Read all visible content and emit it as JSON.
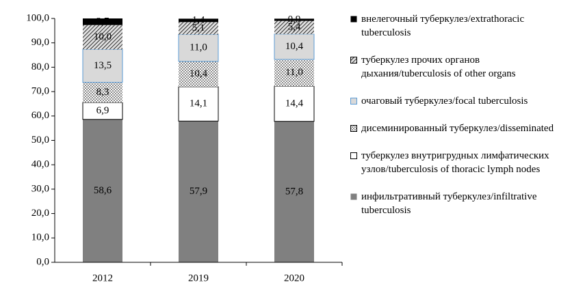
{
  "chart_data": {
    "type": "stacked_bar",
    "categories": [
      "2012",
      "2019",
      "2020"
    ],
    "ylim": [
      0,
      100
    ],
    "yticks": [
      {
        "value": 0,
        "label": "0,0"
      },
      {
        "value": 10,
        "label": "10,0"
      },
      {
        "value": 20,
        "label": "20,0"
      },
      {
        "value": 30,
        "label": "30,0"
      },
      {
        "value": 40,
        "label": "40,0"
      },
      {
        "value": 50,
        "label": "50,0"
      },
      {
        "value": 60,
        "label": "60,0"
      },
      {
        "value": 70,
        "label": "70,0"
      },
      {
        "value": 80,
        "label": "80,0"
      },
      {
        "value": 90,
        "label": "90,0"
      },
      {
        "value": 100,
        "label": "100,0"
      }
    ],
    "series": [
      {
        "name": "инфильтративный туберкулез/infiltrative tuberculosis",
        "color": "#808080",
        "values": [
          58.6,
          57.9,
          57.8
        ],
        "value_labels": [
          "58,6",
          "57,9",
          "57,8"
        ]
      },
      {
        "name": "туберкулез внутригрудных лимфатических узлов/tuberculosis of thoracic lymph nodes",
        "color": "#ffffff",
        "edgecolor": "#000000",
        "values": [
          6.9,
          14.1,
          14.4
        ],
        "value_labels": [
          "6,9",
          "14,1",
          "14,4"
        ]
      },
      {
        "name": "дисеминированный туберкулез/disseminated",
        "color": "#ffffff",
        "pattern": "dots",
        "values": [
          8.3,
          10.4,
          11.0
        ],
        "value_labels": [
          "8,3",
          "10,4",
          "11,0"
        ]
      },
      {
        "name": "очаговый туберкулез/focal tuberculosis",
        "color": "#d9d9d9",
        "edgecolor": "#5b9bd5",
        "values": [
          13.5,
          11.0,
          10.4
        ],
        "value_labels": [
          "13,5",
          "11,0",
          "10,4"
        ]
      },
      {
        "name": "туберкулез прочих органов дыхания/tuberculosis of other organs",
        "color": "#bfbfbf",
        "pattern": "hatch",
        "values": [
          10.0,
          5.1,
          5.4
        ],
        "value_labels": [
          "10,0",
          "5,1",
          "5,4"
        ]
      },
      {
        "name": "внелегочный туберкулез/extrathoracic tuberculosis",
        "color": "#000000",
        "values": [
          2.7,
          1.4,
          0.9
        ],
        "value_labels": [
          "2,7",
          "1,4",
          "0,9"
        ]
      }
    ]
  }
}
